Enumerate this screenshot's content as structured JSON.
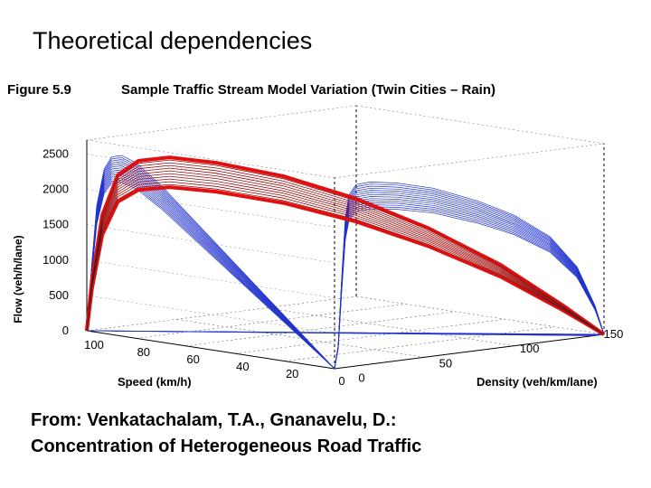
{
  "slide": {
    "title": "Theoretical dependencies",
    "caption_line1": "From: Venkatachalam, T.A., Gnanavelu, D.:",
    "caption_line2": "Concentration of Heterogeneous Road Traffic"
  },
  "chart_data": {
    "type": "line",
    "figure_label": "Figure 5.9",
    "title": "Sample Traffic Stream Model Variation (Twin Cities – Rain)",
    "zlabel": "Flow (veh/h/lane)",
    "xlabel": "Speed (km/h)",
    "ylabel": "Density (veh/km/lane)",
    "z_ticks": [
      "0",
      "500",
      "1000",
      "1500",
      "2000",
      "2500"
    ],
    "speed_ticks": [
      "100",
      "80",
      "60",
      "40",
      "20",
      "0"
    ],
    "density_ticks": [
      "0",
      "50",
      "100",
      "150"
    ],
    "zlim": [
      0,
      2500
    ],
    "speed_range": [
      0,
      100
    ],
    "density_range": [
      0,
      150
    ],
    "grid": true,
    "colors": {
      "model_family": "#2233cc",
      "highlight": "#e01010",
      "box": "#000000"
    },
    "series": [
      {
        "projection": "flow-speed",
        "x": [
          100,
          98,
          96,
          93,
          90,
          86,
          80,
          70,
          60,
          45,
          30,
          15,
          0
        ],
        "y": [
          0,
          900,
          1700,
          2200,
          2380,
          2420,
          2350,
          2100,
          1800,
          1350,
          900,
          450,
          0
        ]
      },
      {
        "projection": "flow-density",
        "x": [
          0,
          2,
          4,
          6,
          8,
          12,
          20,
          35,
          55,
          80,
          100,
          120,
          135,
          145,
          150
        ],
        "y": [
          0,
          300,
          1200,
          2000,
          2300,
          2430,
          2440,
          2380,
          2250,
          2000,
          1750,
          1400,
          950,
          400,
          0
        ]
      },
      {
        "projection": "flow-speed-density (3D, highlighted)",
        "x": [
          100,
          99,
          97,
          94,
          90,
          84,
          75,
          62,
          48,
          34,
          20,
          8,
          0
        ],
        "y": [
          0,
          700,
          1600,
          2150,
          2350,
          2400,
          2330,
          2150,
          1850,
          1450,
          950,
          400,
          0
        ]
      }
    ]
  }
}
